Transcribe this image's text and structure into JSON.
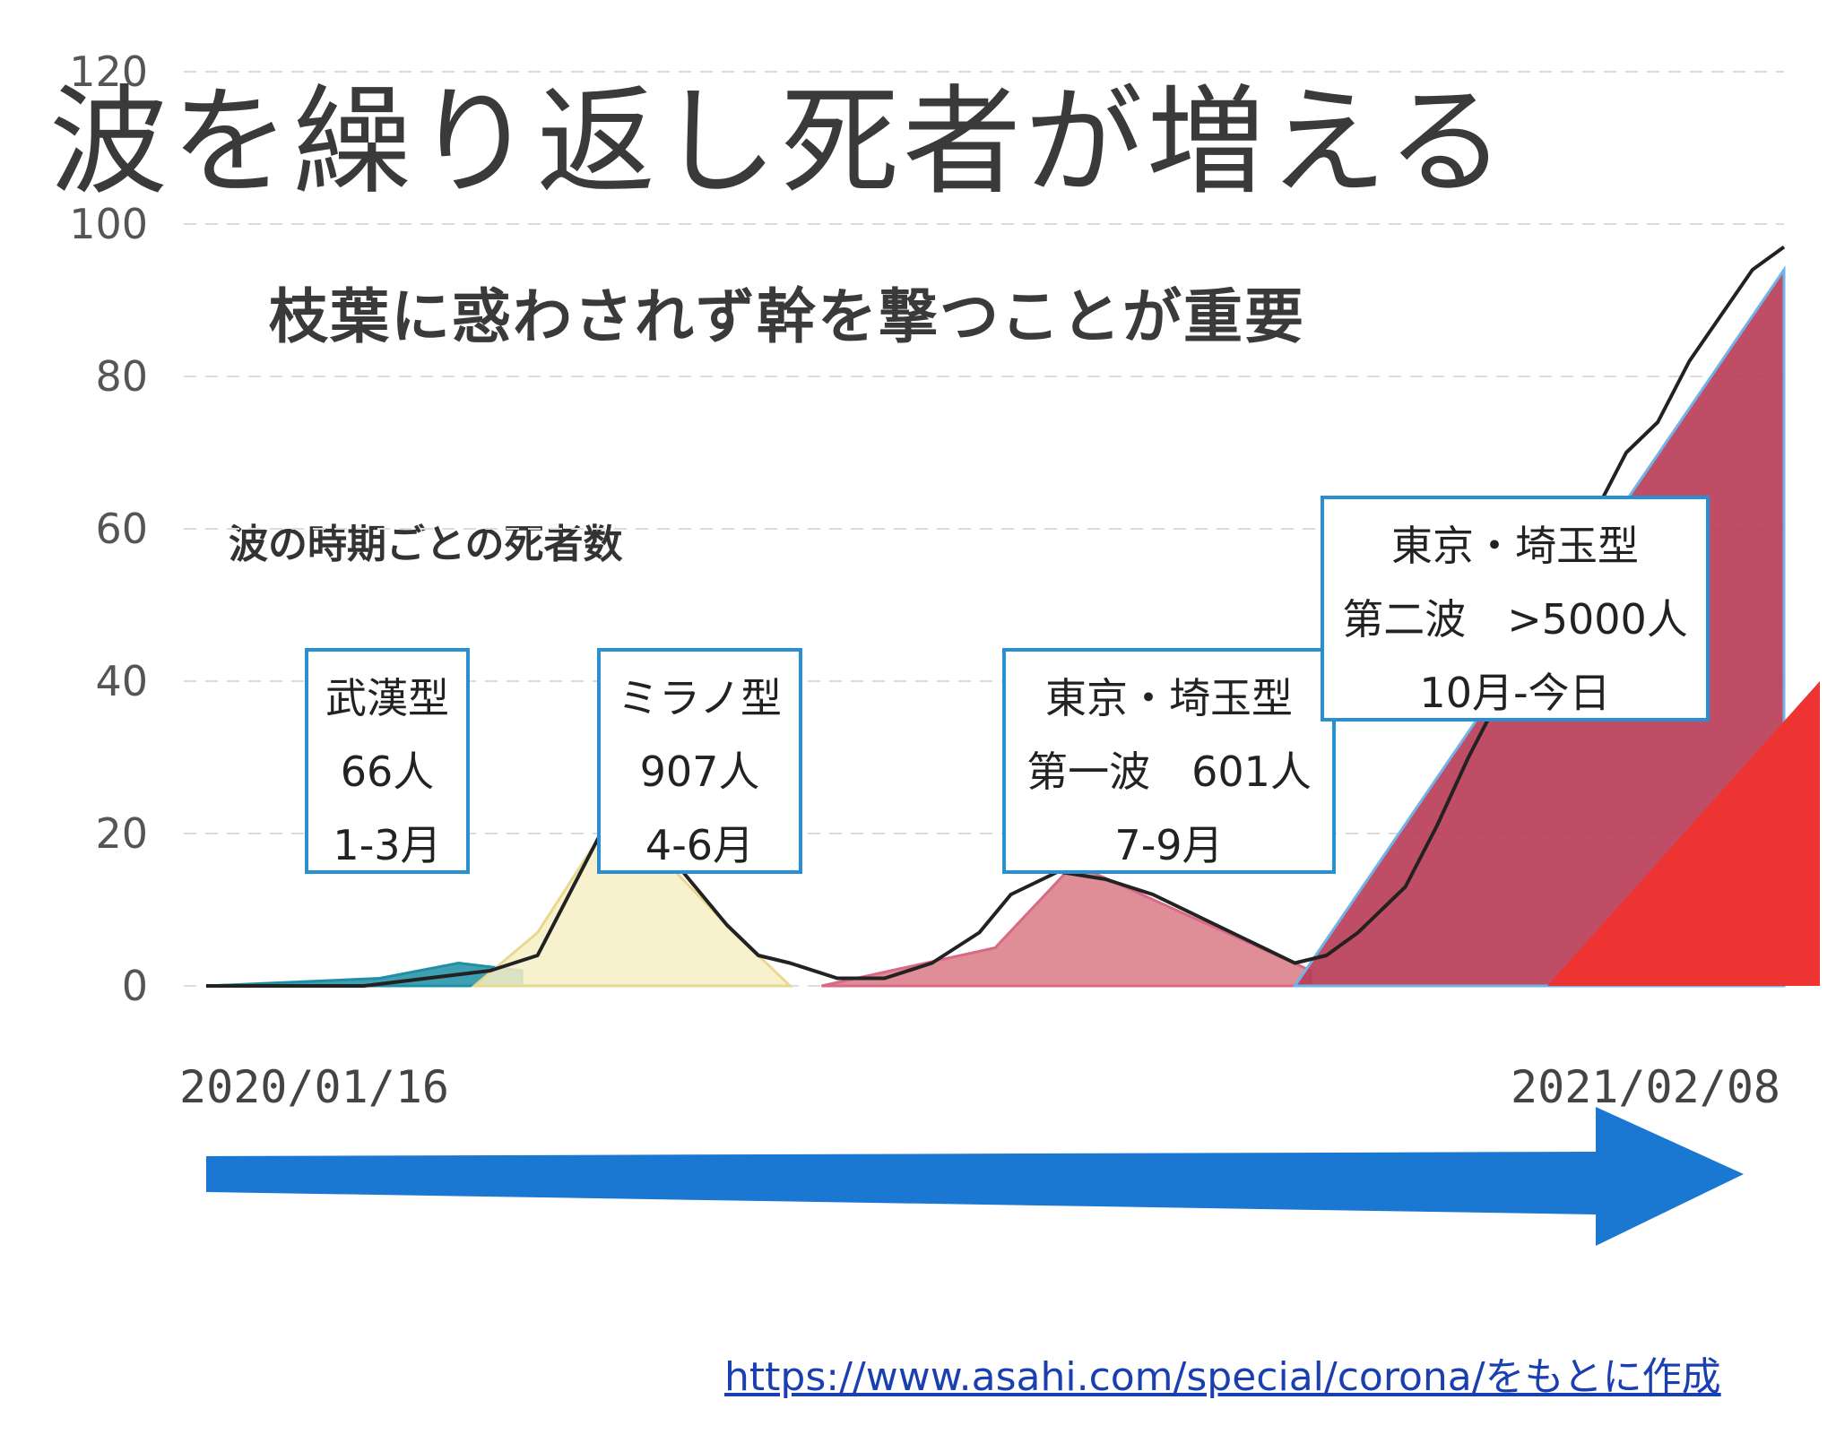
{
  "title": "波を繰り返し死者が増える",
  "subtitle": "枝葉に惑わされず幹を撃つことが重要",
  "source_link": "https://www.asahi.com/special/corona/をもとに作成",
  "chart_data": {
    "type": "area",
    "title": "波の時期ごとの死者数",
    "xlabel": "",
    "ylabel": "",
    "ylim": [
      0,
      120
    ],
    "yticks": [
      "0",
      "20",
      "40",
      "60",
      "80",
      "100",
      "120"
    ],
    "x_start_label": "2020/01/16",
    "x_end_label": "2021/02/08",
    "grid": true,
    "colors": {
      "wuhan": "#1f8fa6",
      "milan": "#f7efc4",
      "tokyo1": "#d97a86",
      "tokyo2": "#b93a55",
      "recent": "#ee3333",
      "trend_line": "#222222",
      "box_border": "#2a8fd0",
      "arrow": "#1a78d2"
    },
    "waves": [
      {
        "name": "武漢型",
        "count": "66人",
        "period": "1-3月",
        "x": [
          0.0,
          0.11,
          0.16,
          0.2
        ],
        "y": [
          0,
          1,
          3,
          2
        ]
      },
      {
        "name": "ミラノ型",
        "count": "907人",
        "period": "4-6月",
        "x": [
          0.17,
          0.21,
          0.26,
          0.33,
          0.37
        ],
        "y": [
          0,
          7,
          23,
          8,
          0
        ]
      },
      {
        "name": "東京・埼玉型",
        "count": "第一波　601人",
        "period": "7-9月",
        "x": [
          0.39,
          0.5,
          0.55,
          0.7
        ],
        "y": [
          0,
          5,
          16,
          2
        ]
      },
      {
        "name": "東京・埼玉型",
        "count": "第二波　>5000人",
        "period": "10月-今日",
        "x": [
          0.69,
          1.0
        ],
        "y": [
          0,
          94
        ]
      }
    ],
    "daily_trend": {
      "x": [
        0.0,
        0.1,
        0.14,
        0.18,
        0.21,
        0.23,
        0.25,
        0.27,
        0.29,
        0.31,
        0.33,
        0.35,
        0.37,
        0.4,
        0.43,
        0.46,
        0.49,
        0.51,
        0.54,
        0.57,
        0.6,
        0.63,
        0.66,
        0.69,
        0.71,
        0.73,
        0.76,
        0.78,
        0.8,
        0.82,
        0.84,
        0.86,
        0.88,
        0.9,
        0.92,
        0.94,
        0.96,
        0.98,
        1.0
      ],
      "y": [
        0,
        0,
        1,
        2,
        4,
        12,
        20,
        22,
        18,
        13,
        8,
        4,
        3,
        1,
        1,
        3,
        7,
        12,
        15,
        14,
        12,
        9,
        6,
        3,
        4,
        7,
        13,
        21,
        30,
        38,
        46,
        55,
        62,
        70,
        74,
        82,
        88,
        94,
        97
      ]
    }
  }
}
